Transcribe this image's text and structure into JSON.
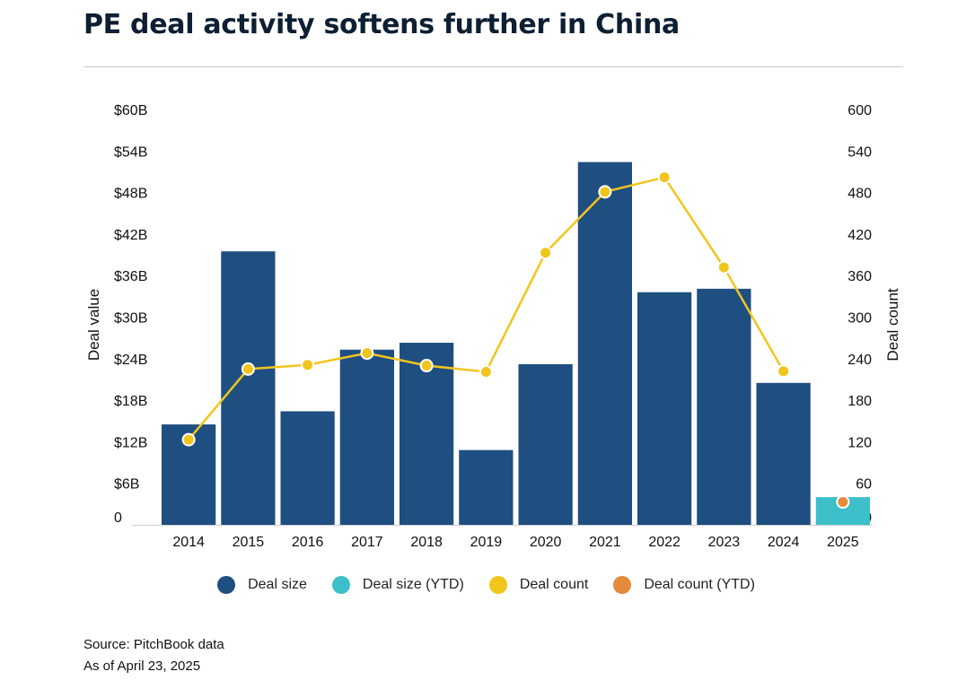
{
  "header": {
    "title": "PE deal activity softens further in China"
  },
  "chart_data": {
    "type": "bar",
    "title": "PE deal activity softens further in China",
    "categories": [
      "2014",
      "2015",
      "2016",
      "2017",
      "2018",
      "2019",
      "2020",
      "2021",
      "2022",
      "2023",
      "2024",
      "2025"
    ],
    "series": [
      {
        "name": "Deal size",
        "axis": "left",
        "kind": "bar",
        "values": [
          14.5,
          39.5,
          16.4,
          25.3,
          26.3,
          10.8,
          23.2,
          52.4,
          33.6,
          34.1,
          20.5,
          null
        ]
      },
      {
        "name": "Deal size (YTD)",
        "axis": "left",
        "kind": "bar",
        "values": [
          null,
          null,
          null,
          null,
          null,
          null,
          null,
          null,
          null,
          null,
          null,
          4.0
        ]
      },
      {
        "name": "Deal count",
        "axis": "right",
        "kind": "line",
        "values": [
          123,
          225,
          231,
          248,
          230,
          221,
          393,
          481,
          502,
          372,
          222,
          null
        ]
      },
      {
        "name": "Deal count (YTD)",
        "axis": "right",
        "kind": "line",
        "values": [
          null,
          null,
          null,
          null,
          null,
          null,
          null,
          null,
          null,
          null,
          null,
          33
        ]
      }
    ],
    "ylabel": "Deal value",
    "ylabel_right": "Deal count",
    "ylim": [
      0,
      60
    ],
    "ylim_right": [
      0,
      600
    ],
    "yticks": [
      "0",
      "$6B",
      "$12B",
      "$18B",
      "$24B",
      "$30B",
      "$36B",
      "$42B",
      "$48B",
      "$54B",
      "$60B"
    ],
    "yticks_right": [
      "0",
      "60",
      "120",
      "180",
      "240",
      "300",
      "360",
      "420",
      "480",
      "540",
      "600"
    ],
    "grid": false,
    "legend": "bottom",
    "colors": {
      "Deal size": "#1f4e80",
      "Deal size (YTD)": "#3dbfc9",
      "Deal count": "#f2c51d",
      "Deal count (YTD)": "#e48b3a"
    }
  },
  "footer": {
    "source": "Source: PitchBook data",
    "asof": "As of April 23, 2025"
  }
}
